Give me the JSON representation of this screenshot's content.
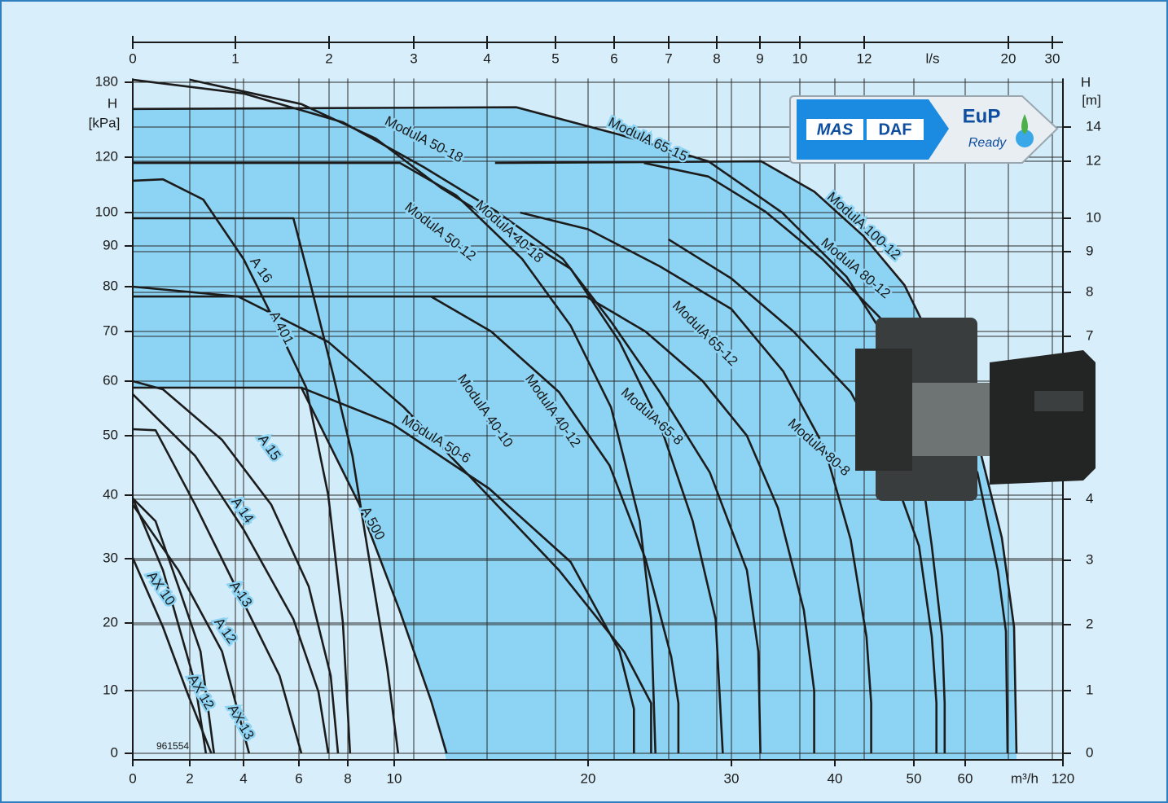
{
  "chart_data": {
    "type": "line",
    "xlabel": "m³/h",
    "x2label": "l/s",
    "ylabel": [
      "H",
      "[kPa]"
    ],
    "y2label": [
      "H",
      "[m]"
    ],
    "code": "961554",
    "xlim": [
      0,
      120
    ],
    "ylim": [
      0,
      183
    ],
    "xticks": [
      0,
      2,
      4,
      6,
      8,
      10,
      20,
      30,
      40,
      50,
      60,
      120
    ],
    "x2ticks": [
      0,
      1,
      2,
      3,
      4,
      5,
      6,
      7,
      8,
      9,
      10,
      12,
      20,
      30
    ],
    "yticks": [
      0,
      10,
      20,
      30,
      40,
      50,
      60,
      70,
      80,
      90,
      100,
      120,
      180
    ],
    "y2ticks": [
      0,
      1,
      2,
      3,
      4,
      7,
      8,
      9,
      10,
      12,
      14
    ],
    "grid": true,
    "series": [
      {
        "name": "ModulA 50-18",
        "color": "#1c1c1c",
        "x": [
          0,
          4,
          7.8,
          11.5,
          15.3,
          18.7,
          21.6,
          25,
          28.5,
          31.5,
          32.6,
          32.8
        ],
        "y": [
          182,
          171,
          148,
          116.5,
          100.3,
          86.8,
          72.2,
          58,
          43.8,
          28.2,
          15.8,
          0
        ]
      },
      {
        "name": "ModulA 65-15",
        "color": "#1c1c1c",
        "x": [
          0,
          16.3,
          22.2,
          28.4,
          34.9,
          41.5,
          46.7,
          50.5,
          53.5,
          55.5,
          56,
          56
        ],
        "y": [
          158.6,
          160,
          138,
          118.5,
          100,
          82.4,
          67.9,
          50,
          32,
          18,
          8,
          0
        ]
      },
      {
        "name": "ModulA 100-12",
        "color": "#1c1c1c",
        "x": [
          15.2,
          32.9,
          38,
          43.6,
          48.8,
          54.4,
          67.5,
          82.5,
          90,
          91.5
        ],
        "y": [
          117.9,
          118.5,
          107.6,
          93,
          80.4,
          66.2,
          49.3,
          33.3,
          19.4,
          0
        ]
      },
      {
        "name": "ModulA 80-12",
        "color": "#1c1c1c",
        "x": [
          23.9,
          28.4,
          33.3,
          38.8,
          45.7,
          54.4,
          67.5,
          80,
          85,
          86
        ],
        "y": [
          117.9,
          113,
          100.3,
          86.8,
          73.1,
          58,
          43.8,
          28.2,
          18.8,
          0
        ]
      },
      {
        "name": "ModulA 50-12",
        "color": "#1c1c1c",
        "x": [
          0,
          10.3,
          13.2,
          16.6,
          19.1,
          21.6,
          23.6,
          24.4,
          24.7
        ],
        "y": [
          117.9,
          117.9,
          106.2,
          86.8,
          71.3,
          55.2,
          35.9,
          20.6,
          0
        ]
      },
      {
        "name": "ModulA 40-18",
        "color": "#1c1c1c",
        "x": [
          2,
          6.1,
          9.2,
          12.4,
          19.1,
          22.2,
          25,
          27.3,
          28.9,
          29.4
        ],
        "y": [
          182,
          162.5,
          135,
          109,
          84.4,
          67.9,
          52.2,
          35.9,
          20.6,
          0
        ]
      },
      {
        "name": "ModulA 65-12",
        "color": "#1c1c1c",
        "x": [
          16.5,
          20,
          25,
          30,
          35,
          39,
          42,
          44,
          44.6,
          44.6
        ],
        "y": [
          100,
          95,
          85,
          75,
          62,
          48,
          33,
          18,
          8,
          0
        ]
      },
      {
        "name": "ModulA 40-10",
        "color": "#1c1c1c",
        "x": [
          0,
          3.8,
          7.2,
          10.5,
          14.5,
          18.5,
          22.5,
          24.4,
          24.4
        ],
        "y": [
          80,
          77.8,
          67.9,
          55.2,
          41.1,
          28.2,
          15.8,
          8,
          0
        ]
      },
      {
        "name": "ModulA 40-12",
        "color": "#1c1c1c",
        "x": [
          0,
          11.9,
          15,
          18.5,
          21.5,
          24,
          25.8,
          26.3,
          26.3
        ],
        "y": [
          77.8,
          77.8,
          70,
          58,
          45,
          30,
          15,
          8,
          0
        ]
      },
      {
        "name": "ModulA 65-8",
        "color": "#1c1c1c",
        "x": [
          11.9,
          19.9,
          24,
          28,
          31.5,
          34.5,
          37,
          38,
          38
        ],
        "y": [
          77.8,
          77.8,
          70,
          60,
          50,
          38,
          22,
          10,
          0
        ]
      },
      {
        "name": "ModulA 80-8",
        "color": "#1c1c1c",
        "x": [
          25.6,
          30,
          36,
          42,
          47,
          51,
          53.5,
          54.4,
          54.4
        ],
        "y": [
          92,
          82,
          70,
          58,
          45,
          32,
          18,
          8,
          0
        ]
      },
      {
        "name": "ModulA 50-6",
        "color": "#1c1c1c",
        "x": [
          0,
          6.1,
          9.9,
          14.9,
          19.1,
          22.2,
          23.2,
          23.2
        ],
        "y": [
          58.8,
          58.8,
          52.2,
          41.1,
          29.5,
          15.8,
          7.1,
          0
        ]
      },
      {
        "name": "A 16",
        "color": "#1c1c1c",
        "x": [
          0,
          1.06,
          2.5,
          4,
          5.2,
          6.3,
          7.2,
          7.8,
          8.1
        ],
        "y": [
          111.5,
          112,
          104.7,
          86.8,
          71.3,
          58.8,
          40,
          20,
          0
        ]
      },
      {
        "name": "A 401",
        "color": "#1c1c1c",
        "x": [
          0,
          5.8,
          6.4,
          7.4,
          8.2,
          9,
          9.7,
          10.2
        ],
        "y": [
          98.3,
          98.3,
          82.4,
          61.3,
          46.6,
          28.2,
          13.4,
          0
        ]
      },
      {
        "name": "A 500",
        "color": "#1c1c1c",
        "x": [
          6.1,
          8.5,
          10.3,
          11.9,
          12.7
        ],
        "y": [
          58.8,
          38.5,
          21.8,
          8.4,
          0
        ]
      },
      {
        "name": "A 15",
        "color": "#1c1c1c",
        "x": [
          0,
          1.06,
          3.2,
          5,
          6.4,
          7.3,
          7.6
        ],
        "y": [
          60,
          58.5,
          49.3,
          38.5,
          25.7,
          12.2,
          0
        ]
      },
      {
        "name": "A 14",
        "color": "#1c1c1c",
        "x": [
          0,
          2.2,
          4,
          5.8,
          6.8,
          7.2
        ],
        "y": [
          57.6,
          46.6,
          34.6,
          20.6,
          9.8,
          0
        ]
      },
      {
        "name": "A 13",
        "color": "#1c1c1c",
        "x": [
          0,
          0.8,
          2.2,
          3.7,
          5.3,
          6.1
        ],
        "y": [
          51.2,
          51,
          38.5,
          25.7,
          12.2,
          0
        ]
      },
      {
        "name": "A 12",
        "color": "#1c1c1c",
        "x": [
          0,
          0.8,
          1.6,
          2.4,
          2.9
        ],
        "y": [
          39.5,
          35.9,
          25.7,
          15.8,
          0
        ]
      },
      {
        "name": "AX 10",
        "color": "#1c1c1c",
        "x": [
          0,
          1.06,
          1.9,
          2.8
        ],
        "y": [
          30.1,
          19.4,
          9.8,
          0
        ]
      },
      {
        "name": "AX 12",
        "color": "#1c1c1c",
        "x": [
          0,
          1.06,
          2.2,
          2.6
        ],
        "y": [
          39.5,
          28.2,
          11,
          0
        ]
      },
      {
        "name": "AX 13",
        "color": "#1c1c1c",
        "x": [
          0,
          1.6,
          3.2,
          4.2
        ],
        "y": [
          38.5,
          28.2,
          15.8,
          0
        ]
      }
    ]
  },
  "logo": {
    "brand": [
      "MAS",
      "DAF"
    ],
    "badge": "EuP",
    "badge_sub": "Ready"
  }
}
